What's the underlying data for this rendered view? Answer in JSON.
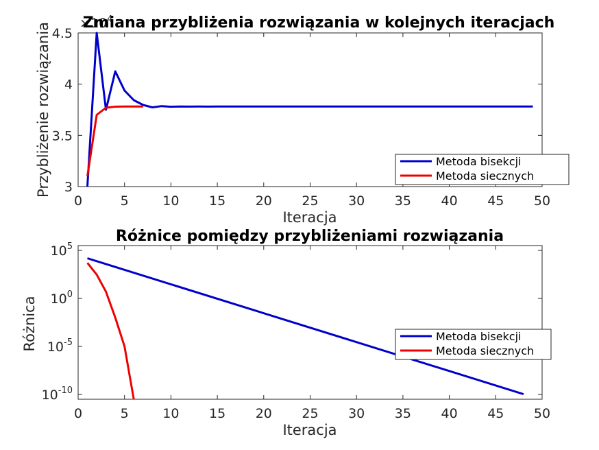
{
  "chart_data": [
    {
      "type": "line",
      "title": "Zmiana przybliżenia rozwiązania w kolejnych iteracjach",
      "xlabel": "Iteracja",
      "ylabel": "Przybliżenie rozwiązania",
      "xlim": [
        0,
        50
      ],
      "ylim": [
        30000,
        45000
      ],
      "y_exponent_label": "×10^4",
      "xticks": [
        0,
        5,
        10,
        15,
        20,
        25,
        30,
        35,
        40,
        45,
        50
      ],
      "yticks": [
        {
          "value": 30000,
          "label": "3"
        },
        {
          "value": 35000,
          "label": "3.5"
        },
        {
          "value": 40000,
          "label": "4"
        },
        {
          "value": 45000,
          "label": "4.5"
        }
      ],
      "yscale": "linear",
      "grid": false,
      "legend": "bottom-right",
      "series": [
        {
          "name": "Metoda bisekcji",
          "color": "#0000cc",
          "x": [
            1,
            2,
            3,
            4,
            5,
            6,
            7,
            8,
            9,
            10,
            11,
            12,
            13,
            14,
            15,
            16,
            17,
            18,
            19,
            20,
            21,
            22,
            23,
            24,
            25,
            26,
            27,
            28,
            29,
            30,
            31,
            32,
            33,
            34,
            35,
            36,
            37,
            38,
            39,
            40,
            41,
            42,
            43,
            44,
            45,
            46,
            47,
            48,
            49
          ],
          "values": [
            30000,
            45000,
            37500,
            41250,
            39375,
            38438,
            37969,
            37734,
            37852,
            37793,
            37822,
            37808,
            37815,
            37811,
            37813,
            37812,
            37812,
            37812,
            37812,
            37812,
            37812,
            37812,
            37812,
            37812,
            37812,
            37812,
            37812,
            37812,
            37812,
            37812,
            37812,
            37812,
            37812,
            37812,
            37812,
            37812,
            37812,
            37812,
            37812,
            37812,
            37812,
            37812,
            37812,
            37812,
            37812,
            37812,
            37812,
            37812,
            37812
          ]
        },
        {
          "name": "Metoda siecznych",
          "color": "#ee0000",
          "x": [
            1,
            2,
            3,
            4,
            5,
            6,
            7
          ],
          "values": [
            31000,
            37000,
            37700,
            37800,
            37812,
            37812,
            37812
          ]
        }
      ]
    },
    {
      "type": "line",
      "title": "Różnice pomiędzy przybliżeniami rozwiązania",
      "xlabel": "Iteracja",
      "ylabel": "Różnica",
      "xlim": [
        0,
        50
      ],
      "ylim_log10": [
        -10.5,
        5.5
      ],
      "yscale": "log",
      "xticks": [
        0,
        5,
        10,
        15,
        20,
        25,
        30,
        35,
        40,
        45,
        50
      ],
      "yticks": [
        {
          "exp": 5,
          "base": "10",
          "sup": "5"
        },
        {
          "exp": 0,
          "base": "10",
          "sup": "0"
        },
        {
          "exp": -5,
          "base": "10",
          "sup": "-5"
        },
        {
          "exp": -10,
          "base": "10",
          "sup": "-10"
        }
      ],
      "grid": false,
      "legend": "bottom-right",
      "series": [
        {
          "name": "Metoda bisekcji",
          "color": "#0000cc",
          "x": [
            1,
            48
          ],
          "values": [
            15000,
            1.07e-10
          ]
        },
        {
          "name": "Metoda siecznych",
          "color": "#ee0000",
          "x": [
            1,
            2,
            3,
            4,
            5,
            6
          ],
          "values": [
            5000,
            300,
            5,
            0.01,
            1e-05,
            1e-11
          ]
        }
      ]
    }
  ]
}
